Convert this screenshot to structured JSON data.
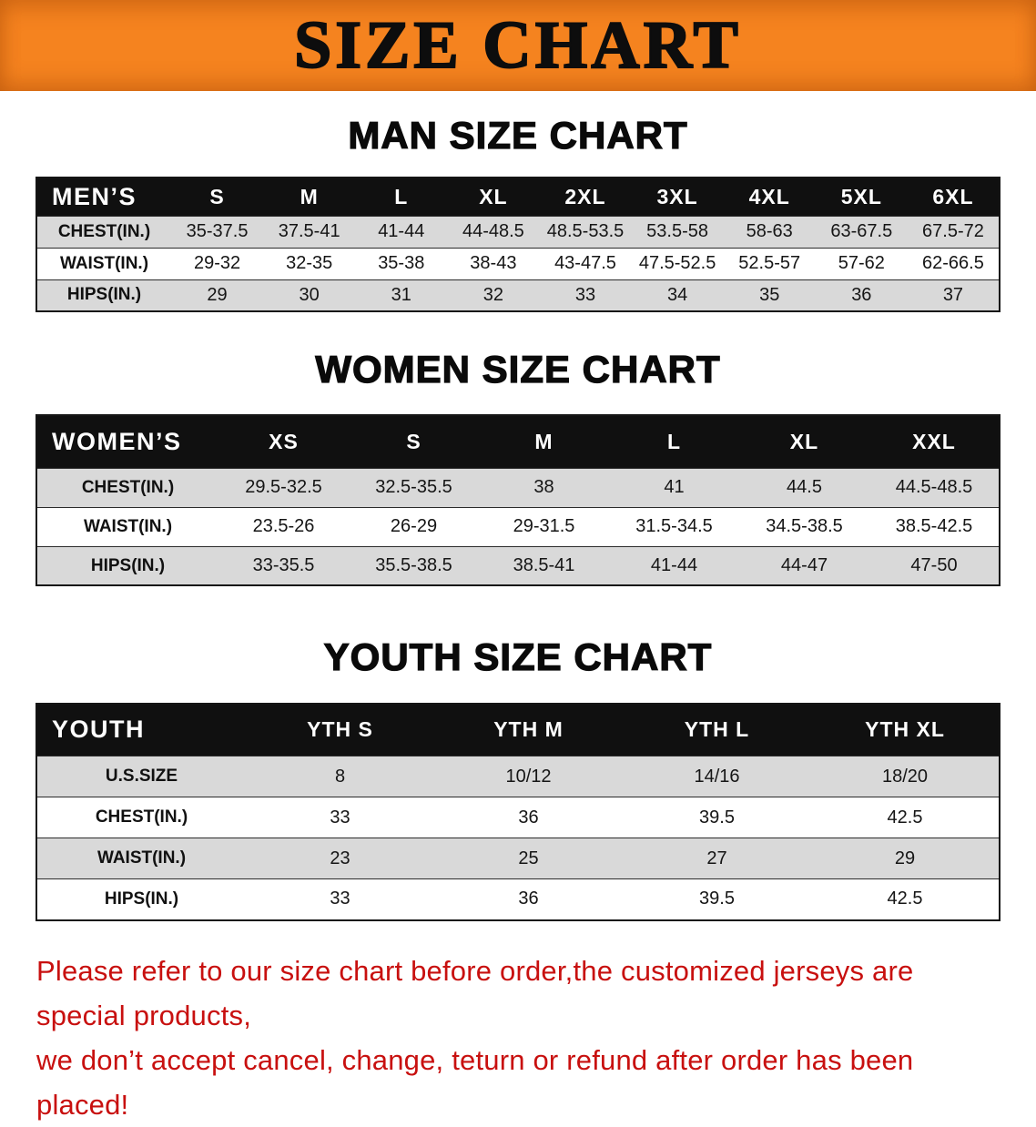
{
  "banner": {
    "title": "SIZE CHART",
    "bg_color": "#F5831F",
    "text_color": "#0d0d0d"
  },
  "chart_data": [
    {
      "type": "table",
      "id": "men",
      "title": "MAN SIZE CHART",
      "columns": [
        "MEN’S",
        "S",
        "M",
        "L",
        "XL",
        "2XL",
        "3XL",
        "4XL",
        "5XL",
        "6XL"
      ],
      "rows": [
        [
          "CHEST(IN.)",
          "35-37.5",
          "37.5-41",
          "41-44",
          "44-48.5",
          "48.5-53.5",
          "53.5-58",
          "58-63",
          "63-67.5",
          "67.5-72"
        ],
        [
          "WAIST(IN.)",
          "29-32",
          "32-35",
          "35-38",
          "38-43",
          "43-47.5",
          "47.5-52.5",
          "52.5-57",
          "57-62",
          "62-66.5"
        ],
        [
          "HIPS(IN.)",
          "29",
          "30",
          "31",
          "32",
          "33",
          "34",
          "35",
          "36",
          "37"
        ]
      ]
    },
    {
      "type": "table",
      "id": "women",
      "title": "WOMEN SIZE CHART",
      "columns": [
        "WOMEN’S",
        "XS",
        "S",
        "M",
        "L",
        "XL",
        "XXL"
      ],
      "rows": [
        [
          "CHEST(IN.)",
          "29.5-32.5",
          "32.5-35.5",
          "38",
          "41",
          "44.5",
          "44.5-48.5"
        ],
        [
          "WAIST(IN.)",
          "23.5-26",
          "26-29",
          "29-31.5",
          "31.5-34.5",
          "34.5-38.5",
          "38.5-42.5"
        ],
        [
          "HIPS(IN.)",
          "33-35.5",
          "35.5-38.5",
          "38.5-41",
          "41-44",
          "44-47",
          "47-50"
        ]
      ]
    },
    {
      "type": "table",
      "id": "youth",
      "title": "YOUTH SIZE CHART",
      "columns": [
        "YOUTH",
        "YTH S",
        "YTH M",
        "YTH L",
        "YTH XL"
      ],
      "rows": [
        [
          "U.S.SIZE",
          "8",
          "10/12",
          "14/16",
          "18/20"
        ],
        [
          "CHEST(IN.)",
          "33",
          "36",
          "39.5",
          "42.5"
        ],
        [
          "WAIST(IN.)",
          "23",
          "25",
          "27",
          "29"
        ],
        [
          "HIPS(IN.)",
          "33",
          "36",
          "39.5",
          "42.5"
        ]
      ]
    }
  ],
  "disclaimer": {
    "color": "#C8100F",
    "lines": [
      "Please refer to our size chart before order,the customized jerseys are special products,",
      "we don’t accept cancel, change, teturn or refund after order has been placed!"
    ]
  }
}
